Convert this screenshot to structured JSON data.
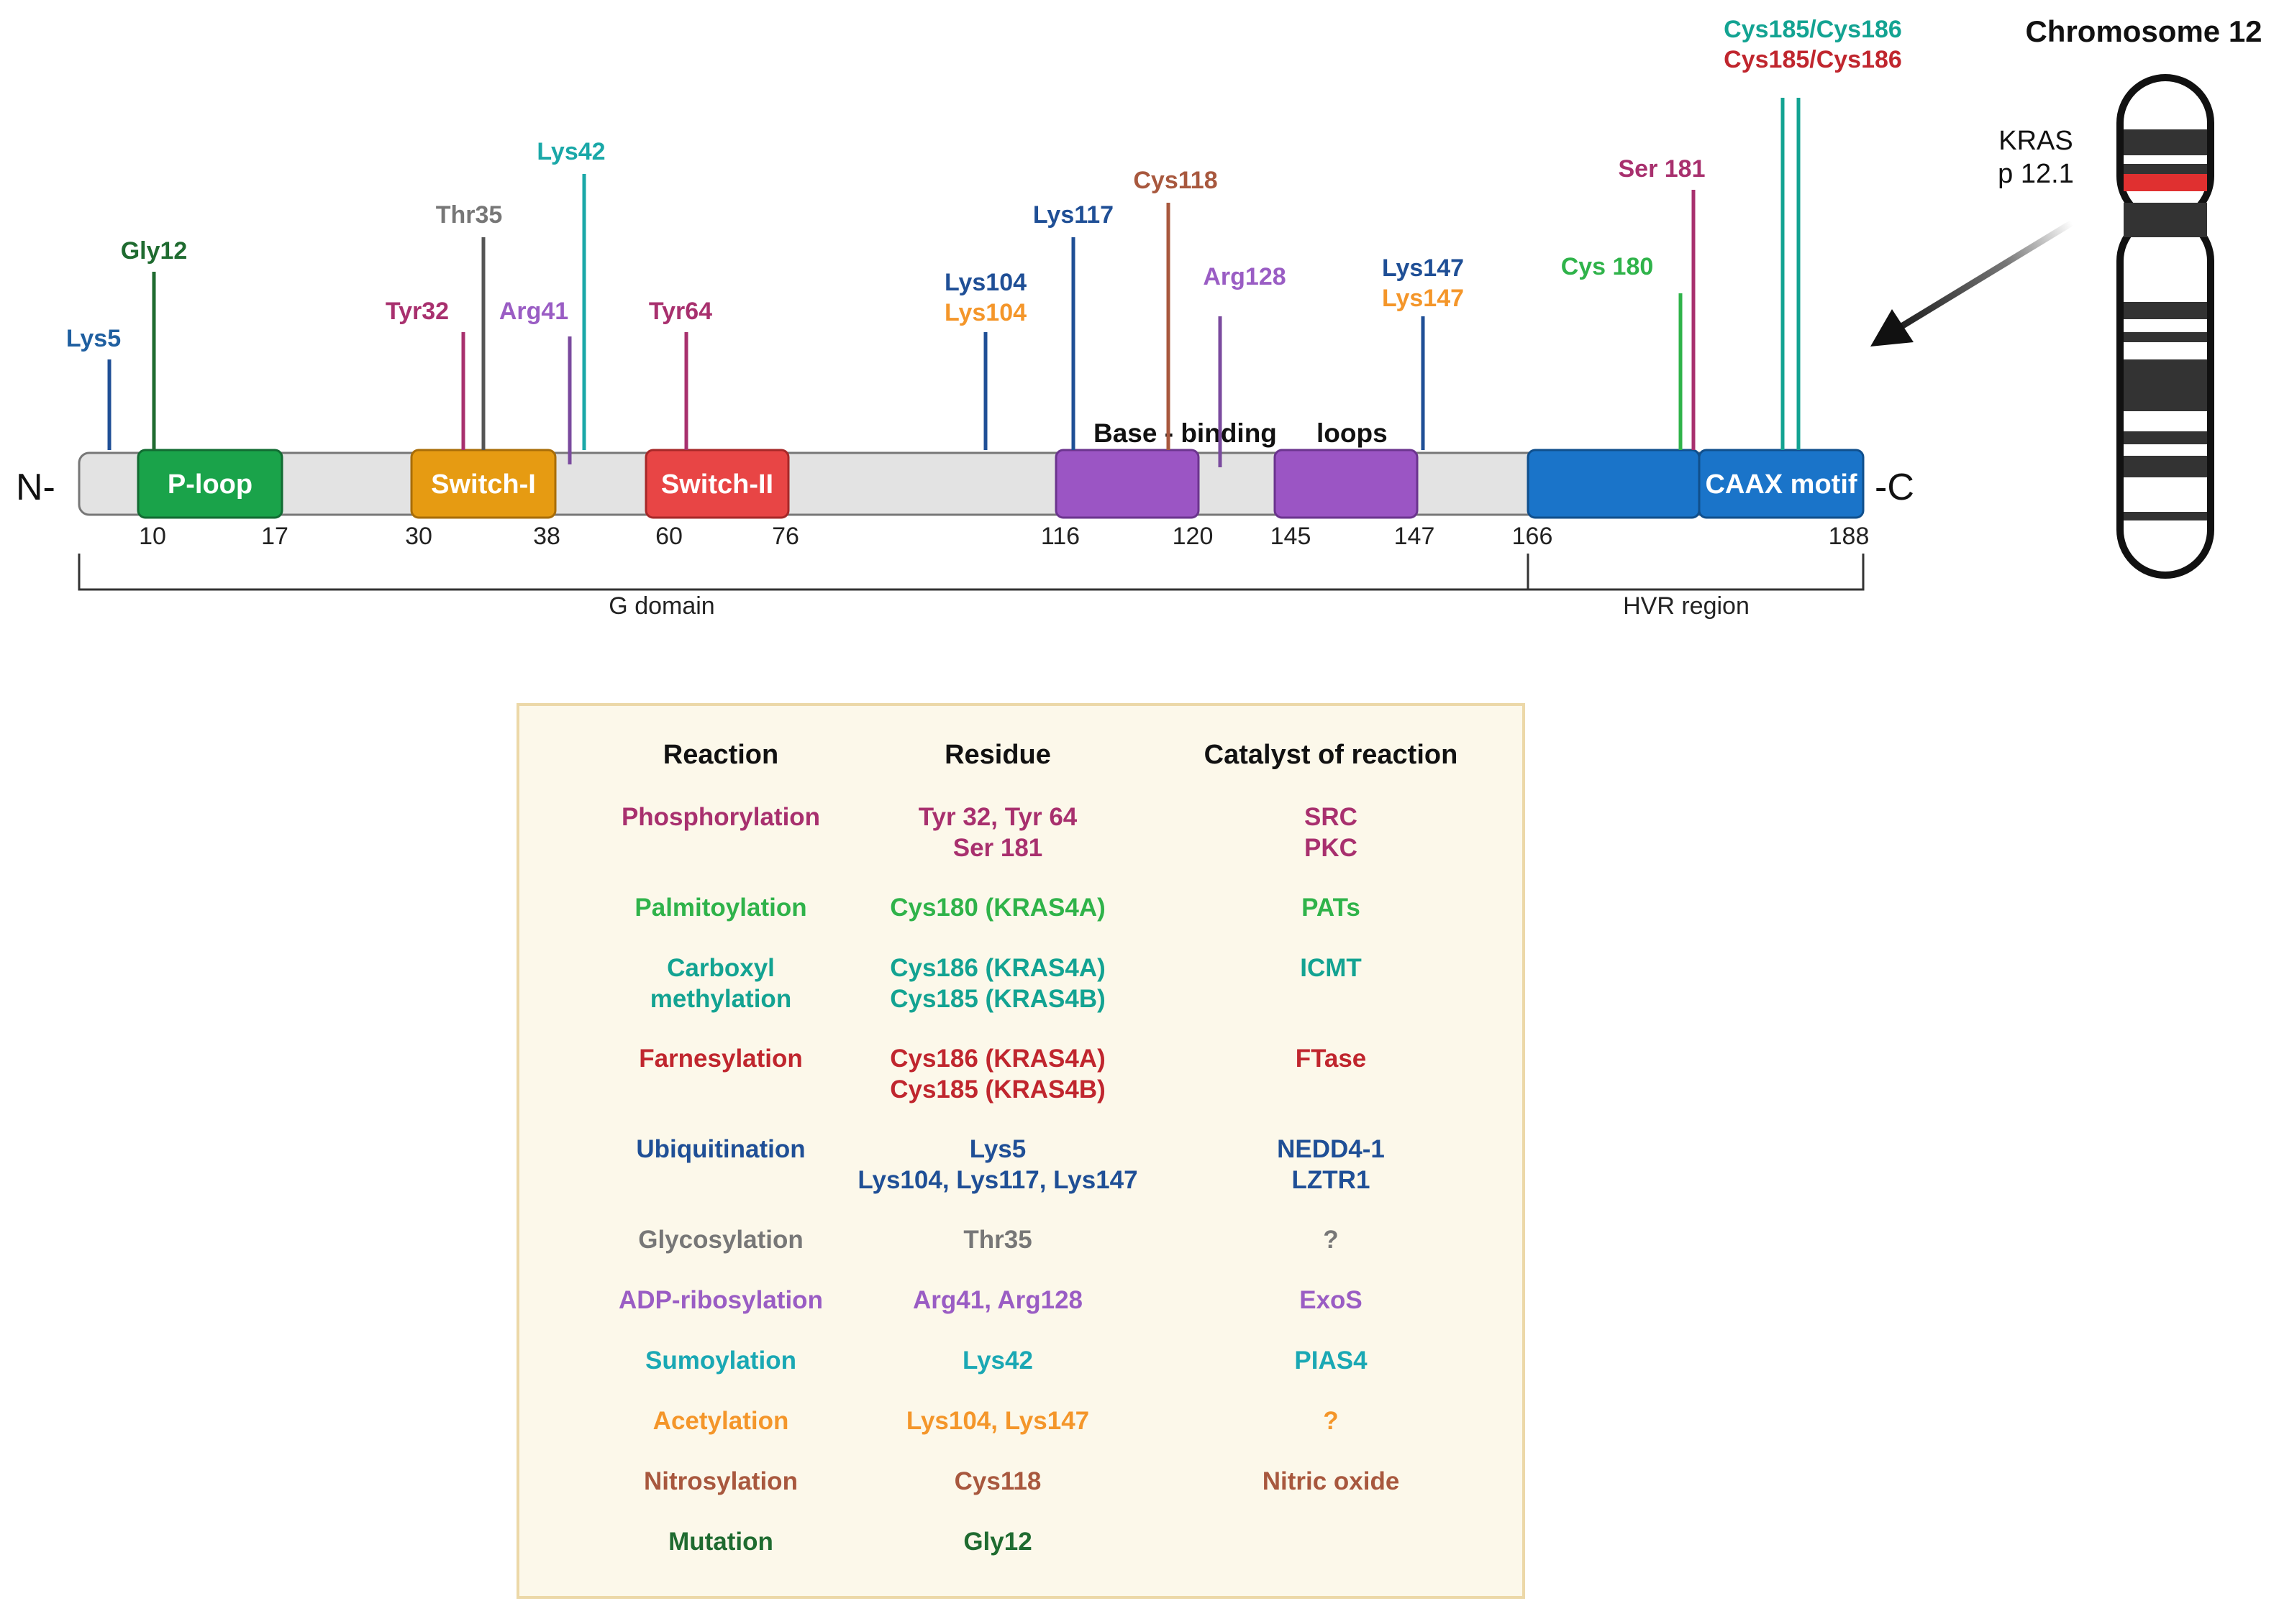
{
  "figure": {
    "chromosome_title": "Chromosome 12",
    "gene_locus_line1": "KRAS",
    "gene_locus_line2": "p 12.1",
    "n_terminus": "N-",
    "c_terminus": "-C"
  },
  "domains": [
    {
      "label": "P-loop",
      "start": "10",
      "end": "17",
      "color": "#1aa34a"
    },
    {
      "label": "Switch-I",
      "start": "30",
      "end": "38",
      "color": "#e69b12"
    },
    {
      "label": "Switch-II",
      "start": "60",
      "end": "76",
      "color": "#e84545"
    },
    {
      "label": "",
      "start": "116",
      "end": "120",
      "color": "#9b55c4"
    },
    {
      "label": "",
      "start": "145",
      "end": "147",
      "color": "#9b55c4"
    },
    {
      "label": "",
      "start": "166",
      "end": "",
      "color": "#1a74c9"
    },
    {
      "label": "CAAX motif",
      "start": "",
      "end": "188",
      "color": "#1a74c9"
    }
  ],
  "base_binding_label": {
    "part1": "Base - binding",
    "part2": "loops"
  },
  "regions": [
    {
      "label": "G domain"
    },
    {
      "label": "HVR region"
    }
  ],
  "sites": [
    {
      "label": "Lys5",
      "color": "#1f5fa0"
    },
    {
      "label": "Gly12",
      "color": "#1f6b30"
    },
    {
      "label": "Tyr32",
      "color": "#a8306e"
    },
    {
      "label": "Thr35",
      "color": "#777777"
    },
    {
      "label": "Arg41",
      "color": "#9a5dc4"
    },
    {
      "label": "Lys42",
      "color": "#1aa8a8"
    },
    {
      "label": "Tyr64",
      "color": "#a8306e"
    },
    {
      "label": "Lys104",
      "label2": "Lys104",
      "color": "#1f4f96",
      "color2": "#f4962a"
    },
    {
      "label": "Lys117",
      "color": "#1f4f96"
    },
    {
      "label": "Cys118",
      "color": "#a8583e"
    },
    {
      "label": "Arg128",
      "color": "#9a5dc4"
    },
    {
      "label": "Lys147",
      "label2": "Lys147",
      "color": "#1f4f96",
      "color2": "#f4962a"
    },
    {
      "label": "Cys 180",
      "color": "#2fb34a"
    },
    {
      "label": "Ser 181",
      "color": "#a8306e"
    },
    {
      "label": "Cys185/Cys186",
      "label2": "Cys185/Cys186",
      "color": "#13a392",
      "color2": "#c0262e"
    }
  ],
  "table": {
    "headers": [
      "Reaction",
      "Residue",
      "Catalyst of reaction"
    ],
    "rows": [
      {
        "reaction": "Phosphorylation",
        "residue": [
          "Tyr 32, Tyr 64",
          "Ser 181"
        ],
        "catalyst": [
          "SRC",
          "PKC"
        ],
        "color": "#a8306e"
      },
      {
        "reaction": "Palmitoylation",
        "residue": [
          "Cys180 (KRAS4A)"
        ],
        "catalyst": [
          "PATs"
        ],
        "color": "#2fb34a"
      },
      {
        "reaction": "Carboxyl\nmethylation",
        "residue": [
          "Cys186 (KRAS4A)",
          "Cys185 (KRAS4B)"
        ],
        "catalyst": [
          "ICMT"
        ],
        "color": "#13a392"
      },
      {
        "reaction": "Farnesylation",
        "residue": [
          "Cys186 (KRAS4A)",
          "Cys185 (KRAS4B)"
        ],
        "catalyst": [
          "FTase"
        ],
        "color": "#c0262e"
      },
      {
        "reaction": "Ubiquitination",
        "residue": [
          "Lys5",
          "Lys104, Lys117, Lys147"
        ],
        "catalyst": [
          "NEDD4-1",
          "LZTR1"
        ],
        "color": "#1f4f96"
      },
      {
        "reaction": "Glycosylation",
        "residue": [
          "Thr35"
        ],
        "catalyst": [
          "?"
        ],
        "color": "#777777"
      },
      {
        "reaction": "ADP-ribosylation",
        "residue": [
          "Arg41, Arg128"
        ],
        "catalyst": [
          "ExoS"
        ],
        "color": "#9a5dc4"
      },
      {
        "reaction": "Sumoylation",
        "residue": [
          "Lys42"
        ],
        "catalyst": [
          "PIAS4"
        ],
        "color": "#1aa8b4"
      },
      {
        "reaction": "Acetylation",
        "residue": [
          "Lys104, Lys147"
        ],
        "catalyst": [
          "?"
        ],
        "color": "#f4962a"
      },
      {
        "reaction": "Nitrosylation",
        "residue": [
          "Cys118"
        ],
        "catalyst": [
          "Nitric oxide"
        ],
        "color": "#a8583e"
      },
      {
        "reaction": "Mutation",
        "residue": [
          "Gly12"
        ],
        "catalyst": [
          ""
        ],
        "color": "#1f6b30"
      }
    ]
  }
}
